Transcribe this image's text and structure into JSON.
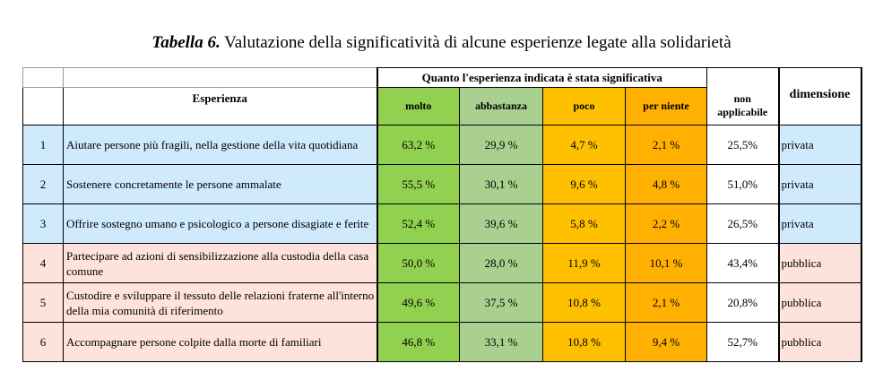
{
  "title": {
    "lead": "Tabella 6.",
    "text": "Valutazione della significatività di alcune esperienze legate alla solidarietà"
  },
  "header": {
    "esperienza": "Esperienza",
    "group": "Quanto l'esperienza indicata è stata significativa",
    "molto": "molto",
    "abbastanza": "abbastanza",
    "poco": "poco",
    "per_niente": "per niente",
    "non_applicabile_1": "non",
    "non_applicabile_2": "applicabile",
    "dimensione": "dimensione"
  },
  "colors": {
    "molto": "#92d050",
    "abbastanza": "#a9d08e",
    "poco": "#ffc000",
    "per_niente": "#ffb000",
    "privata_row": "#cfeafc",
    "pubblica_row": "#fde3dc"
  },
  "rows": [
    {
      "n": "1",
      "esperienza": "Aiutare persone più fragili, nella gestione della vita quotidiana",
      "molto": "63,2 %",
      "abbastanza": "29,9 %",
      "poco": "4,7 %",
      "per_niente": "2,1 %",
      "non_applicabile": "25,5%",
      "dimensione": "privata"
    },
    {
      "n": "2",
      "esperienza": "Sostenere concretamente le persone ammalate",
      "molto": "55,5 %",
      "abbastanza": "30,1 %",
      "poco": "9,6 %",
      "per_niente": "4,8 %",
      "non_applicabile": "51,0%",
      "dimensione": "privata"
    },
    {
      "n": "3",
      "esperienza": "Offrire sostegno umano e psicologico a persone disagiate e ferite",
      "molto": "52,4 %",
      "abbastanza": "39,6 %",
      "poco": "5,8 %",
      "per_niente": "2,2 %",
      "non_applicabile": "26,5%",
      "dimensione": "privata"
    },
    {
      "n": "4",
      "esperienza": "Partecipare ad azioni di sensibilizzazione alla custodia della casa comune",
      "molto": "50,0 %",
      "abbastanza": "28,0 %",
      "poco": "11,9 %",
      "per_niente": "10,1 %",
      "non_applicabile": "43,4%",
      "dimensione": "pubblica"
    },
    {
      "n": "5",
      "esperienza": "Custodire e sviluppare il tessuto delle relazioni fraterne all'interno della mia comunità di riferimento",
      "molto": "49,6 %",
      "abbastanza": "37,5 %",
      "poco": "10,8 %",
      "per_niente": "2,1 %",
      "non_applicabile": "20,8%",
      "dimensione": "pubblica"
    },
    {
      "n": "6",
      "esperienza": "Accompagnare persone colpite dalla morte di familiari",
      "molto": "46,8 %",
      "abbastanza": "33,1 %",
      "poco": "10,8 %",
      "per_niente": "9,4 %",
      "non_applicabile": "52,7%",
      "dimensione": "pubblica"
    }
  ]
}
